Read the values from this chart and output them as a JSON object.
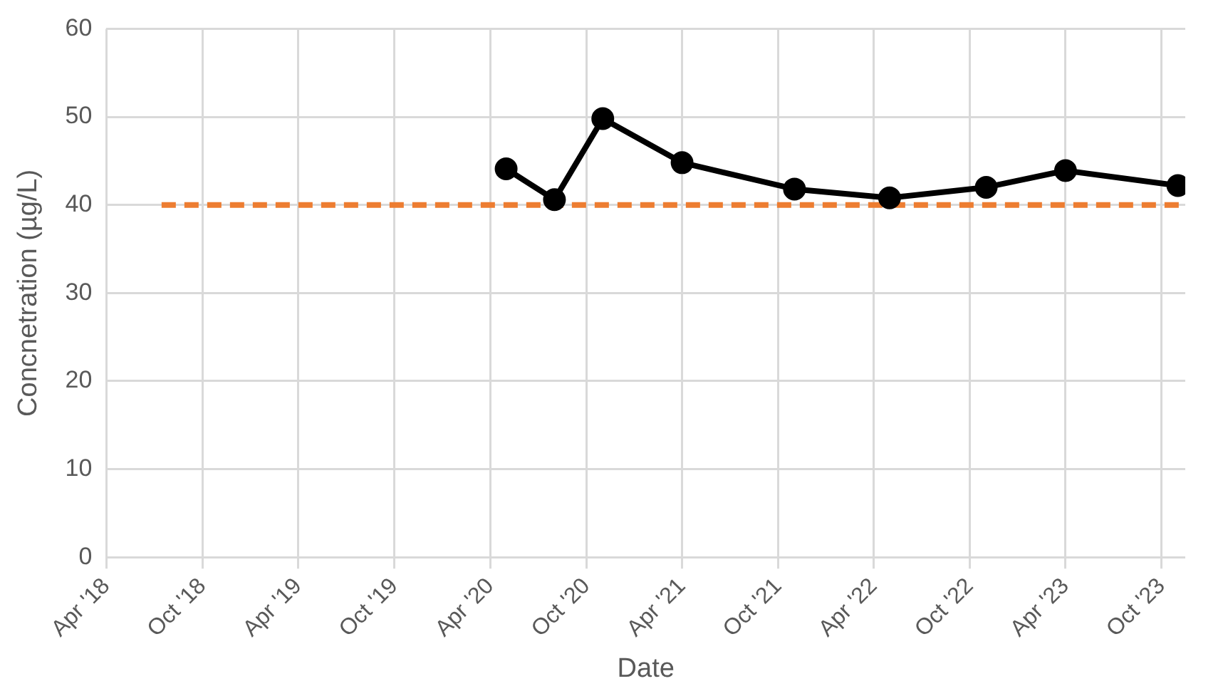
{
  "chart_data": {
    "type": "line",
    "xlabel": "Date",
    "ylabel": "Concnetration (µg/L)",
    "xlim": [
      "2018-04",
      "2023-11-15"
    ],
    "xticks": [
      {
        "value": "2018-04",
        "label": "Apr '18"
      },
      {
        "value": "2018-10",
        "label": "Oct '18"
      },
      {
        "value": "2019-04",
        "label": "Apr '19"
      },
      {
        "value": "2019-10",
        "label": "Oct '19"
      },
      {
        "value": "2020-04",
        "label": "Apr '20"
      },
      {
        "value": "2020-10",
        "label": "Oct '20"
      },
      {
        "value": "2021-04",
        "label": "Apr '21"
      },
      {
        "value": "2021-10",
        "label": "Oct '21"
      },
      {
        "value": "2022-04",
        "label": "Apr '22"
      },
      {
        "value": "2022-10",
        "label": "Oct '22"
      },
      {
        "value": "2023-04",
        "label": "Apr '23"
      },
      {
        "value": "2023-10",
        "label": "Oct '23"
      }
    ],
    "ylim": [
      0,
      60
    ],
    "yticks": [
      0,
      10,
      20,
      30,
      40,
      50,
      60
    ],
    "grid": true,
    "legend": false,
    "series": [
      {
        "color": "#000000",
        "marker": "circle",
        "line_style": "solid",
        "x": [
          "2020-05",
          "2020-08",
          "2020-11",
          "2021-04",
          "2021-11",
          "2022-05",
          "2022-11",
          "2023-04",
          "2023-11"
        ],
        "values": [
          44.1,
          40.6,
          49.8,
          44.8,
          41.8,
          40.8,
          42.0,
          43.9,
          42.2
        ]
      },
      {
        "color": "#ed7d31",
        "marker": "none",
        "line_style": "dashed",
        "x": [
          "2018-07-15",
          "2023-11-15"
        ],
        "values": [
          40,
          40
        ]
      }
    ]
  }
}
